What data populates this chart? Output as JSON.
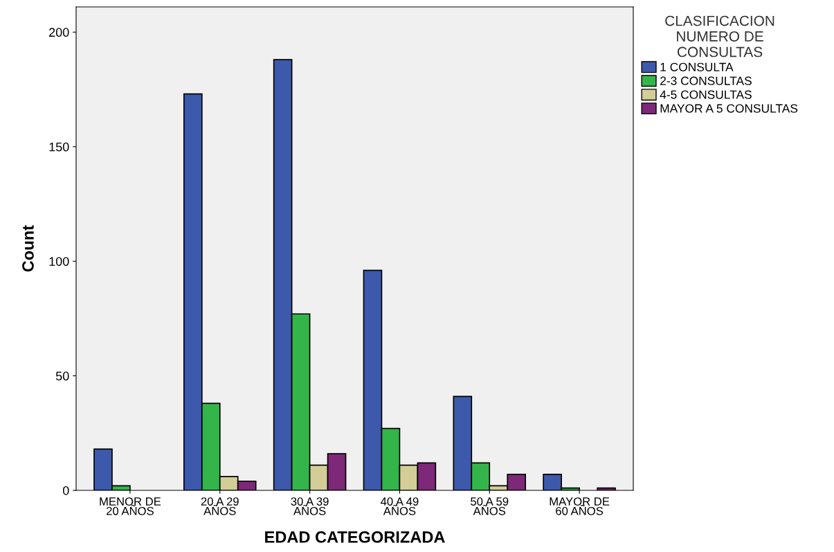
{
  "chart_data": {
    "type": "bar",
    "xlabel": "EDAD CATEGORIZADA",
    "ylabel": "Count",
    "legend_title": "CLASIFICACION\nNUMERO DE\nCONSULTAS",
    "categories": [
      "MENOR DE\n20 AÑOS",
      "20 A 29\nAÑOS",
      "30 A 39\nAÑOS",
      "40 A 49\nAÑOS",
      "50 A 59\nAÑOS",
      "MAYOR DE\n60 AÑOS"
    ],
    "series": [
      {
        "name": "1 CONSULTA",
        "color": "#3d59ab",
        "values": [
          18,
          173,
          188,
          96,
          41,
          7
        ]
      },
      {
        "name": "2-3 CONSULTAS",
        "color": "#33b54a",
        "values": [
          2,
          38,
          77,
          27,
          12,
          1
        ]
      },
      {
        "name": "4-5 CONSULTAS",
        "color": "#d3ce97",
        "values": [
          null,
          6,
          11,
          11,
          2,
          null
        ]
      },
      {
        "name": "MAYOR A 5 CONSULTAS",
        "color": "#7d2878",
        "values": [
          null,
          4,
          16,
          12,
          7,
          1
        ]
      }
    ],
    "ylim": [
      0,
      211
    ],
    "yticks": [
      0,
      50,
      100,
      150,
      200
    ],
    "grid": false,
    "legend": "top right"
  }
}
